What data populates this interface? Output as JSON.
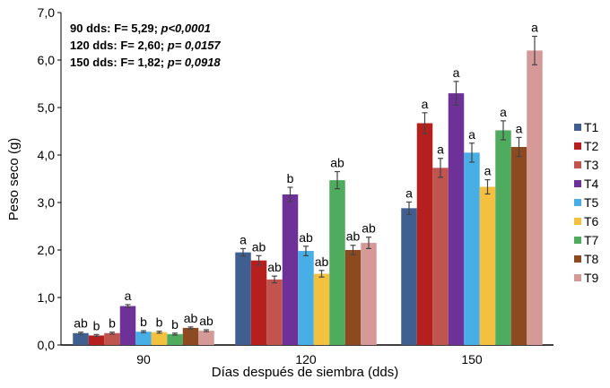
{
  "chart_data": {
    "type": "bar",
    "title": "",
    "xlabel": "Días después de siembra (dds)",
    "ylabel": "Peso seco (g)",
    "ylim": [
      0,
      7
    ],
    "yticks": [
      "0,0",
      "1,0",
      "2,0",
      "3,0",
      "4,0",
      "5,0",
      "6,0",
      "7,0"
    ],
    "categories": [
      "90",
      "120",
      "150"
    ],
    "annotations": [
      {
        "prefix": "90 dds: F= 5,29; ",
        "stat": "p<0,0001"
      },
      {
        "prefix": "120 dds: F= 2,60; ",
        "stat": "p= 0,0157"
      },
      {
        "prefix": "150 dds: F= 1,82; ",
        "stat": "p= 0,0918"
      }
    ],
    "legend_position": "right",
    "series": [
      {
        "name": "T1",
        "color": "#3e5f8f",
        "values": [
          0.25,
          1.95,
          2.88
        ],
        "errors": [
          0.02,
          0.08,
          0.13
        ],
        "letters": [
          "ab",
          "a",
          "a"
        ]
      },
      {
        "name": "T2",
        "color": "#b5201e",
        "values": [
          0.2,
          1.78,
          4.67
        ],
        "errors": [
          0.02,
          0.1,
          0.22
        ],
        "letters": [
          "b",
          "ab",
          "a"
        ]
      },
      {
        "name": "T3",
        "color": "#c0544f",
        "values": [
          0.25,
          1.38,
          3.73
        ],
        "errors": [
          0.02,
          0.07,
          0.2
        ],
        "letters": [
          "b",
          "ab",
          "a"
        ]
      },
      {
        "name": "T4",
        "color": "#6d3197",
        "values": [
          0.82,
          3.17,
          5.3
        ],
        "errors": [
          0.03,
          0.15,
          0.25
        ],
        "letters": [
          "a",
          "b",
          "a"
        ]
      },
      {
        "name": "T5",
        "color": "#47aee6",
        "values": [
          0.28,
          1.98,
          4.05
        ],
        "errors": [
          0.02,
          0.1,
          0.2
        ],
        "letters": [
          "b",
          "ab",
          "a"
        ]
      },
      {
        "name": "T6",
        "color": "#f3c03f",
        "values": [
          0.27,
          1.5,
          3.33
        ],
        "errors": [
          0.02,
          0.07,
          0.15
        ],
        "letters": [
          "b",
          "ab",
          "a"
        ]
      },
      {
        "name": "T7",
        "color": "#4fab5d",
        "values": [
          0.23,
          3.47,
          4.52
        ],
        "errors": [
          0.02,
          0.18,
          0.2
        ],
        "letters": [
          "b",
          "ab",
          "a"
        ]
      },
      {
        "name": "T8",
        "color": "#8d4a21",
        "values": [
          0.36,
          2.0,
          4.17
        ],
        "errors": [
          0.02,
          0.1,
          0.2
        ],
        "letters": [
          "ab",
          "ab",
          "a"
        ]
      },
      {
        "name": "T9",
        "color": "#d59a98",
        "values": [
          0.3,
          2.15,
          6.2
        ],
        "errors": [
          0.02,
          0.12,
          0.3
        ],
        "letters": [
          "ab",
          "ab",
          "a"
        ]
      }
    ]
  }
}
